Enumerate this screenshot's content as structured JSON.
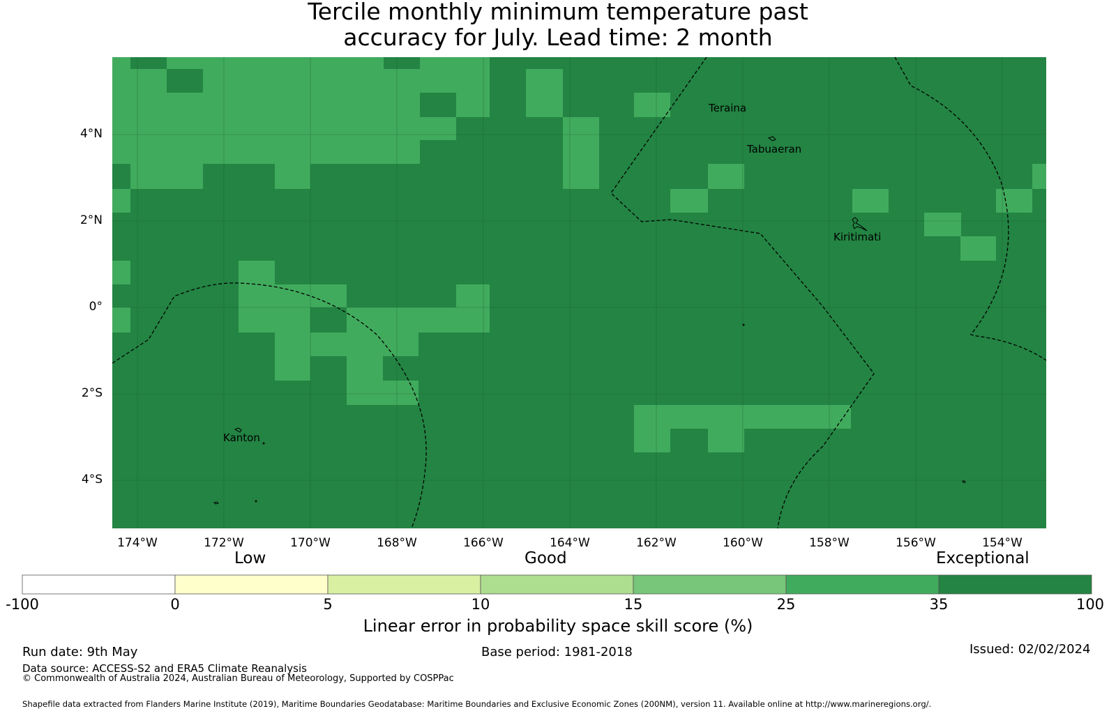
{
  "title_line1": "Tercile monthly minimum temperature past",
  "title_line2": "accuracy for July. Lead time: 2 month",
  "map": {
    "lon_labels": [
      "174°W",
      "172°W",
      "170°W",
      "168°W",
      "166°W",
      "164°W",
      "162°W",
      "160°W",
      "158°W",
      "156°W",
      "154°W"
    ],
    "lat_labels": [
      "4°N",
      "2°N",
      "0°",
      "2°S",
      "4°S"
    ],
    "places": [
      "Teraina",
      "Tabuaeran",
      "Kiritimati",
      "Kanton"
    ],
    "colors": {
      "dark_green": "#238443",
      "light_green": "#41ab5d"
    }
  },
  "colorbar": {
    "categories": [
      "Low",
      "Good",
      "Exceptional"
    ],
    "ticks": [
      "-100",
      "0",
      "5",
      "10",
      "15",
      "25",
      "35",
      "100"
    ],
    "colors": [
      "#ffffff",
      "#ffffcc",
      "#d9f0a3",
      "#addd8e",
      "#78c679",
      "#41ab5d",
      "#238443"
    ],
    "label": "Linear error in probability space skill score (%)"
  },
  "footer": {
    "run_date": "Run date: 9th May",
    "base_period": "Base period: 1981-2018",
    "issued": "Issued: 02/02/2024",
    "data_source": "Data source: ACCESS-S2 and ERA5 Climate Reanalysis",
    "copyright": "© Commonwealth of Australia 2024, Australian Bureau of Meteorology, Supported by COSPPac",
    "shapefile": "Shapefile data extracted from Flanders Marine Institute (2019), Maritime Boundaries Geodatabase: Maritime Boundaries and Exclusive Economic Zones (200NM), version 11. Available online at http://www.marineregions.org/."
  }
}
